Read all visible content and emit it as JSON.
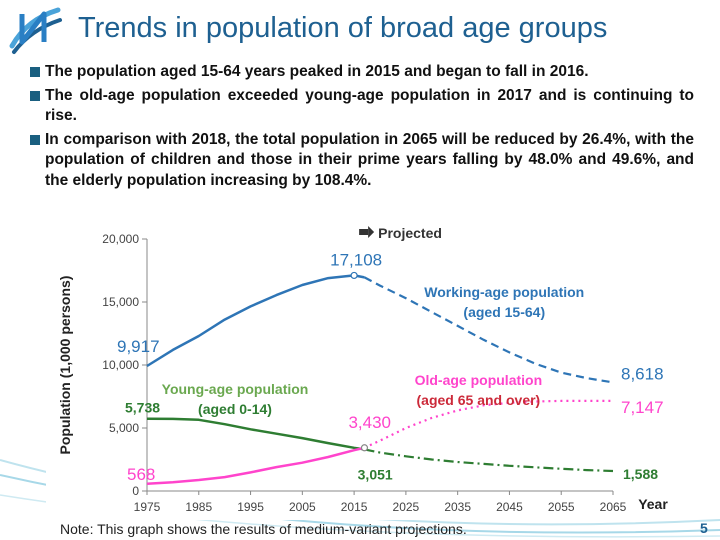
{
  "slide": {
    "title": "Trends in population of broad age groups",
    "bullets": [
      "The population aged 15-64 years peaked in 2015 and began to fall in 2016.",
      "The old-age population exceeded young-age population in 2017 and is continuing to rise.",
      "In comparison with 2018, the total population in 2065 will be reduced by 26.4%, with the population of children and those in their prime years falling by 48.0% and 49.6%, and the elderly population increasing by 108.4%."
    ],
    "note": "Note: This graph shows the results of medium-variant projections.",
    "page_number": "5",
    "colors": {
      "title": "#1e6091",
      "bullet": "#1a5f80"
    }
  },
  "chart_data": {
    "type": "line",
    "title": "",
    "xlabel": "Year",
    "ylabel": "Population (1,000 persons)",
    "xlim": [
      1975,
      2065
    ],
    "ylim": [
      0,
      20000
    ],
    "x_ticks": [
      1975,
      1985,
      1995,
      2005,
      2015,
      2025,
      2035,
      2045,
      2055,
      2065
    ],
    "y_ticks": [
      0,
      5000,
      10000,
      15000,
      20000
    ],
    "y_tick_labels": [
      "0",
      "5,000",
      "10,000",
      "15,000",
      "20,000"
    ],
    "projection_start": 2017,
    "projected_label": "Projected",
    "series": [
      {
        "name": "Working-age population (aged 15-64)",
        "color": "#2e75b6",
        "label_color": "#2e75b6",
        "style": "solid-then-dashed",
        "points": [
          [
            1975,
            9917
          ],
          [
            1980,
            11200
          ],
          [
            1985,
            12300
          ],
          [
            1990,
            13600
          ],
          [
            1995,
            14650
          ],
          [
            2000,
            15550
          ],
          [
            2005,
            16350
          ],
          [
            2010,
            16900
          ],
          [
            2015,
            17108
          ],
          [
            2017,
            16950
          ],
          [
            2020,
            16300
          ],
          [
            2025,
            15300
          ],
          [
            2030,
            14200
          ],
          [
            2035,
            13100
          ],
          [
            2040,
            12000
          ],
          [
            2045,
            11000
          ],
          [
            2050,
            10100
          ],
          [
            2055,
            9400
          ],
          [
            2060,
            8950
          ],
          [
            2065,
            8618
          ]
        ],
        "labels": [
          {
            "text": "9,917",
            "year": 1975
          },
          {
            "text": "17,108",
            "year": 2015
          },
          {
            "text": "8,618",
            "year": 2065
          }
        ]
      },
      {
        "name": "Young-age population (aged 0-14)",
        "color": "#2e7d32",
        "label_color": "#6aa84f",
        "style": "solid-then-dashdot",
        "points": [
          [
            1975,
            5738
          ],
          [
            1980,
            5720
          ],
          [
            1985,
            5650
          ],
          [
            1990,
            5300
          ],
          [
            1995,
            4900
          ],
          [
            2000,
            4550
          ],
          [
            2005,
            4200
          ],
          [
            2010,
            3800
          ],
          [
            2015,
            3430
          ],
          [
            2017,
            3300
          ],
          [
            2020,
            3050
          ],
          [
            2025,
            2750
          ],
          [
            2030,
            2500
          ],
          [
            2035,
            2300
          ],
          [
            2040,
            2150
          ],
          [
            2045,
            2000
          ],
          [
            2050,
            1880
          ],
          [
            2055,
            1760
          ],
          [
            2060,
            1660
          ],
          [
            2065,
            1588
          ]
        ],
        "labels": [
          {
            "text": "5,738",
            "year": 1975
          },
          {
            "text": "3,051",
            "year": 2018
          },
          {
            "text": "1,588",
            "year": 2065
          }
        ]
      },
      {
        "name": "Old-age population (aged 65 and over)",
        "color": "#ff44cc",
        "label_color": "#ff44cc",
        "style": "solid-then-dotted",
        "points": [
          [
            1975,
            568
          ],
          [
            1980,
            700
          ],
          [
            1985,
            870
          ],
          [
            1990,
            1100
          ],
          [
            1995,
            1480
          ],
          [
            2000,
            1900
          ],
          [
            2005,
            2250
          ],
          [
            2010,
            2700
          ],
          [
            2015,
            3240
          ],
          [
            2017,
            3430
          ],
          [
            2020,
            4000
          ],
          [
            2025,
            5000
          ],
          [
            2030,
            5800
          ],
          [
            2035,
            6400
          ],
          [
            2040,
            6800
          ],
          [
            2045,
            7000
          ],
          [
            2050,
            7100
          ],
          [
            2055,
            7150
          ],
          [
            2060,
            7150
          ],
          [
            2065,
            7147
          ]
        ],
        "labels": [
          {
            "text": "568",
            "year": 1975
          },
          {
            "text": "3,430",
            "year": 2017
          },
          {
            "text": "7,147",
            "year": 2065
          }
        ]
      }
    ]
  }
}
